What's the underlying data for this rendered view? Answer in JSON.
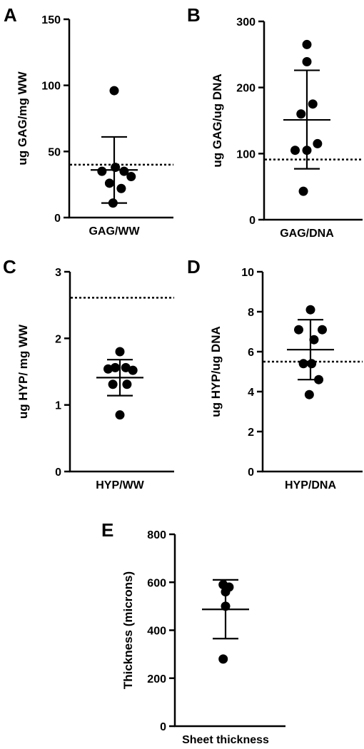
{
  "chart_data": [
    {
      "panel": "A",
      "type": "scatter",
      "xlabel": "GAG/WW",
      "ylabel": "ug GAG/mg WW",
      "ylim": [
        0,
        150
      ],
      "yticks": [
        0,
        50,
        100,
        150
      ],
      "points": [
        {
          "x": -0.52,
          "y": 35
        },
        {
          "x": 0.05,
          "y": 38
        },
        {
          "x": 0.42,
          "y": 35
        },
        {
          "x": 0.72,
          "y": 31
        },
        {
          "x": -0.2,
          "y": 26
        },
        {
          "x": 0.3,
          "y": 22
        },
        {
          "x": -0.05,
          "y": 11
        },
        {
          "x": 0.0,
          "y": 96
        }
      ],
      "mean": 36,
      "sd_upper": 61,
      "sd_lower": 11,
      "reference": 40
    },
    {
      "panel": "B",
      "type": "scatter",
      "xlabel": "GAG/DNA",
      "ylabel": "ug GAG/ug DNA",
      "ylim": [
        0,
        300
      ],
      "yticks": [
        0,
        100,
        200,
        300
      ],
      "points": [
        {
          "x": 0.0,
          "y": 265
        },
        {
          "x": 0.0,
          "y": 239
        },
        {
          "x": 0.25,
          "y": 175
        },
        {
          "x": -0.25,
          "y": 160
        },
        {
          "x": -0.5,
          "y": 105
        },
        {
          "x": 0.0,
          "y": 105
        },
        {
          "x": 0.45,
          "y": 115
        },
        {
          "x": -0.15,
          "y": 43
        }
      ],
      "mean": 151,
      "sd_upper": 226,
      "sd_lower": 77,
      "reference": 91
    },
    {
      "panel": "C",
      "type": "scatter",
      "xlabel": "HYP/WW",
      "ylabel": "ug HYP/ mg WW",
      "ylim": [
        0,
        3
      ],
      "yticks": [
        0,
        1,
        2,
        3
      ],
      "points": [
        {
          "x": 0.0,
          "y": 1.8
        },
        {
          "x": -0.5,
          "y": 1.54
        },
        {
          "x": -0.2,
          "y": 1.56
        },
        {
          "x": 0.25,
          "y": 1.56
        },
        {
          "x": 0.55,
          "y": 1.52
        },
        {
          "x": -0.3,
          "y": 1.31
        },
        {
          "x": 0.3,
          "y": 1.31
        },
        {
          "x": 0.0,
          "y": 0.85
        }
      ],
      "mean": 1.41,
      "sd_upper": 1.68,
      "sd_lower": 1.14,
      "reference": 2.61
    },
    {
      "panel": "D",
      "type": "scatter",
      "xlabel": "HYP/DNA",
      "ylabel": "ug HYP/ug DNA",
      "ylim": [
        0,
        10
      ],
      "yticks": [
        0,
        2,
        4,
        6,
        8,
        10
      ],
      "points": [
        {
          "x": 0.0,
          "y": 8.1
        },
        {
          "x": -0.5,
          "y": 7.1
        },
        {
          "x": 0.5,
          "y": 7.1
        },
        {
          "x": 0.15,
          "y": 6.6
        },
        {
          "x": -0.3,
          "y": 5.4
        },
        {
          "x": 0.05,
          "y": 5.4
        },
        {
          "x": 0.35,
          "y": 4.6
        },
        {
          "x": -0.05,
          "y": 3.85
        }
      ],
      "mean": 6.1,
      "sd_upper": 7.6,
      "sd_lower": 4.6,
      "reference": 5.5
    },
    {
      "panel": "E",
      "type": "scatter",
      "xlabel": "Sheet thickness",
      "ylabel": "Thickness (microns)",
      "ylim": [
        0,
        800
      ],
      "yticks": [
        0,
        200,
        400,
        600,
        800
      ],
      "points": [
        {
          "x": -0.1,
          "y": 590
        },
        {
          "x": 0.0,
          "y": 560
        },
        {
          "x": 0.15,
          "y": 580
        },
        {
          "x": 0.0,
          "y": 500
        },
        {
          "x": -0.1,
          "y": 280
        }
      ],
      "mean": 487,
      "sd_upper": 610,
      "sd_lower": 365,
      "reference": null
    }
  ]
}
